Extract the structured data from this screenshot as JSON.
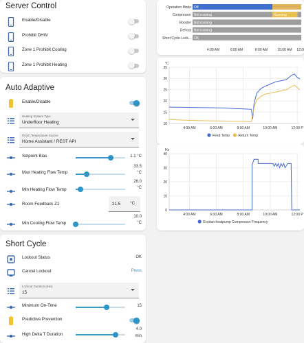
{
  "server_control": {
    "title": "Server Control",
    "items": [
      {
        "label": "Enable/Disable",
        "icon": "phone-icon",
        "on": false
      },
      {
        "label": "Prohibit DHW",
        "icon": "phone-icon",
        "on": false
      },
      {
        "label": "Zone 1 Prohibit Cooling",
        "icon": "phone-icon",
        "on": false
      },
      {
        "label": "Zone 1 Prohibit Heating",
        "icon": "phone-icon",
        "on": false
      }
    ]
  },
  "auto_adaptive": {
    "title": "Auto Adaptive",
    "enable_label": "Enable/Disable",
    "enable_on": true,
    "heating_system": {
      "label": "Heating System Type",
      "value": "Underfloor Heating"
    },
    "room_temp_source": {
      "label": "Room Temperature Source",
      "value": "Home Assistant / REST API"
    },
    "setpoint_bias": {
      "label": "Setpoint Bias",
      "value": "1.1 °C",
      "fraction": 0.71
    },
    "max_flow": {
      "label": "Max Heating Flow Temp",
      "value_line1": "33.5",
      "value_line2": "°C",
      "fraction": 0.22
    },
    "min_flow": {
      "label": "Min Heating Flow Temp",
      "value_line1": "26.0",
      "value_line2": "°C",
      "fraction": 0.1
    },
    "room_feedback": {
      "label": "Room Feedback Z1",
      "value": "21.5",
      "unit": "°C"
    },
    "min_cooling": {
      "label": "Min Cooling Flow Temp",
      "value_line1": "10.0",
      "value_line2": "°C",
      "fraction": 0.0
    }
  },
  "short_cycle": {
    "title": "Short Cycle",
    "lockout_status": {
      "label": "Lockout Status",
      "value": "OK"
    },
    "cancel_lockout": {
      "label": "Cancel Lockout",
      "action": "Press"
    },
    "lockout_duration": {
      "label": "Lockout Duration (min)",
      "value": "15"
    },
    "min_on_time": {
      "label": "Minimum On-Time",
      "value": "15",
      "fraction": 0.62
    },
    "predictive": {
      "label": "Predictive Prevention",
      "on": true
    },
    "high_delta": {
      "label": "High Delta T Duration",
      "value_line1": "4.0",
      "value_line2": "min",
      "fraction": 0.8
    }
  },
  "timeline": {
    "rows": [
      {
        "label": "Operation Mode",
        "segments": [
          {
            "from": 0,
            "to": 0.735,
            "text": "Off",
            "color": "#3f6fd0"
          },
          {
            "from": 0.735,
            "to": 1.0,
            "text": "",
            "color": "#e2b45a"
          }
        ]
      },
      {
        "label": "Compressor",
        "segments": [
          {
            "from": 0,
            "to": 0.735,
            "text": "Not running",
            "color": "#9e9e9e"
          },
          {
            "from": 0.735,
            "to": 0.965,
            "text": "Running",
            "color": "#e8bf4f"
          },
          {
            "from": 0.965,
            "to": 1.0,
            "text": "",
            "color": "#9e9e9e"
          }
        ]
      },
      {
        "label": "Booster",
        "segments": [
          {
            "from": 0,
            "to": 1.0,
            "text": "Not running",
            "color": "#9e9e9e"
          }
        ]
      },
      {
        "label": "Defrost",
        "segments": [
          {
            "from": 0,
            "to": 1.0,
            "text": "Not running",
            "color": "#9e9e9e"
          }
        ]
      },
      {
        "label": "Short Cycle Lock...",
        "segments": [
          {
            "from": 0,
            "to": 1.0,
            "text": "OK",
            "color": "#9e9e9e"
          }
        ]
      }
    ],
    "ticks": [
      "4:00 AM",
      "6:00 AM",
      "8:00 AM",
      "10:00 AM",
      "12:00 P"
    ]
  },
  "chart_data": [
    {
      "type": "line",
      "ylabel": "°C",
      "ylim": [
        10,
        35
      ],
      "yticks": [
        10,
        15,
        20,
        25,
        30,
        35
      ],
      "xlim": [
        2.5,
        12.2
      ],
      "xticks": [
        {
          "v": 4,
          "label": "4:00 AM"
        },
        {
          "v": 6,
          "label": "6:00 AM"
        },
        {
          "v": 8,
          "label": "8:00 AM"
        },
        {
          "v": 10,
          "label": "10:00 AM"
        },
        {
          "v": 12,
          "label": "12:00 P"
        }
      ],
      "series": [
        {
          "name": "Feed Temp",
          "color": "#4169d0",
          "points": [
            [
              2.5,
              17.3
            ],
            [
              3.5,
              17.2
            ],
            [
              4.5,
              17.1
            ],
            [
              5.5,
              17.0
            ],
            [
              6.5,
              16.9
            ],
            [
              7.5,
              16.6
            ],
            [
              8.0,
              16.5
            ],
            [
              8.6,
              16.3
            ],
            [
              8.7,
              12.0
            ],
            [
              8.8,
              19.0
            ],
            [
              9.0,
              23.5
            ],
            [
              9.3,
              25.5
            ],
            [
              9.6,
              26.5
            ],
            [
              10.0,
              27.5
            ],
            [
              10.4,
              28.5
            ],
            [
              10.8,
              29.0
            ],
            [
              11.2,
              29.5
            ],
            [
              11.6,
              31.5
            ],
            [
              11.8,
              32.0
            ],
            [
              12.0,
              30.5
            ],
            [
              12.2,
              29.8
            ]
          ]
        },
        {
          "name": "Return Temp",
          "color": "#e8bd52",
          "points": [
            [
              2.5,
              11.8
            ],
            [
              3.5,
              11.5
            ],
            [
              4.5,
              11.3
            ],
            [
              5.5,
              11.2
            ],
            [
              6.5,
              11.1
            ],
            [
              7.5,
              11.0
            ],
            [
              8.0,
              11.0
            ],
            [
              8.6,
              10.8
            ],
            [
              8.8,
              17.0
            ],
            [
              9.0,
              20.5
            ],
            [
              9.3,
              22.0
            ],
            [
              9.6,
              23.0
            ],
            [
              10.0,
              23.5
            ],
            [
              10.4,
              24.0
            ],
            [
              10.8,
              24.5
            ],
            [
              11.2,
              25.0
            ],
            [
              11.6,
              26.5
            ],
            [
              11.8,
              27.0
            ],
            [
              12.0,
              26.0
            ],
            [
              12.2,
              25.0
            ]
          ]
        }
      ]
    },
    {
      "type": "line",
      "ylabel": "Hz",
      "ylim": [
        0,
        40
      ],
      "yticks": [
        0,
        10,
        20,
        30,
        40
      ],
      "xlim": [
        2.5,
        12.2
      ],
      "xticks": [
        {
          "v": 4,
          "label": "4:00 AM"
        },
        {
          "v": 6,
          "label": "6:00 AM"
        },
        {
          "v": 8,
          "label": "8:00 AM"
        },
        {
          "v": 10,
          "label": "10:00 AM"
        },
        {
          "v": 12,
          "label": "12:00 P"
        }
      ],
      "series": [
        {
          "name": "Ecodan heatpump Compressor Frequency",
          "color": "#4169d0",
          "points": [
            [
              2.5,
              0
            ],
            [
              8.65,
              0
            ],
            [
              8.65,
              32
            ],
            [
              8.8,
              36
            ],
            [
              9.1,
              36
            ],
            [
              9.1,
              33
            ],
            [
              10.2,
              33
            ],
            [
              10.3,
              31
            ],
            [
              10.4,
              33
            ],
            [
              10.5,
              31
            ],
            [
              10.6,
              33
            ],
            [
              10.7,
              30
            ],
            [
              10.8,
              33
            ],
            [
              10.9,
              31
            ],
            [
              11.0,
              33
            ],
            [
              11.1,
              30
            ],
            [
              11.3,
              33
            ],
            [
              11.55,
              33
            ],
            [
              11.6,
              0
            ],
            [
              12.2,
              0
            ]
          ]
        }
      ]
    }
  ]
}
